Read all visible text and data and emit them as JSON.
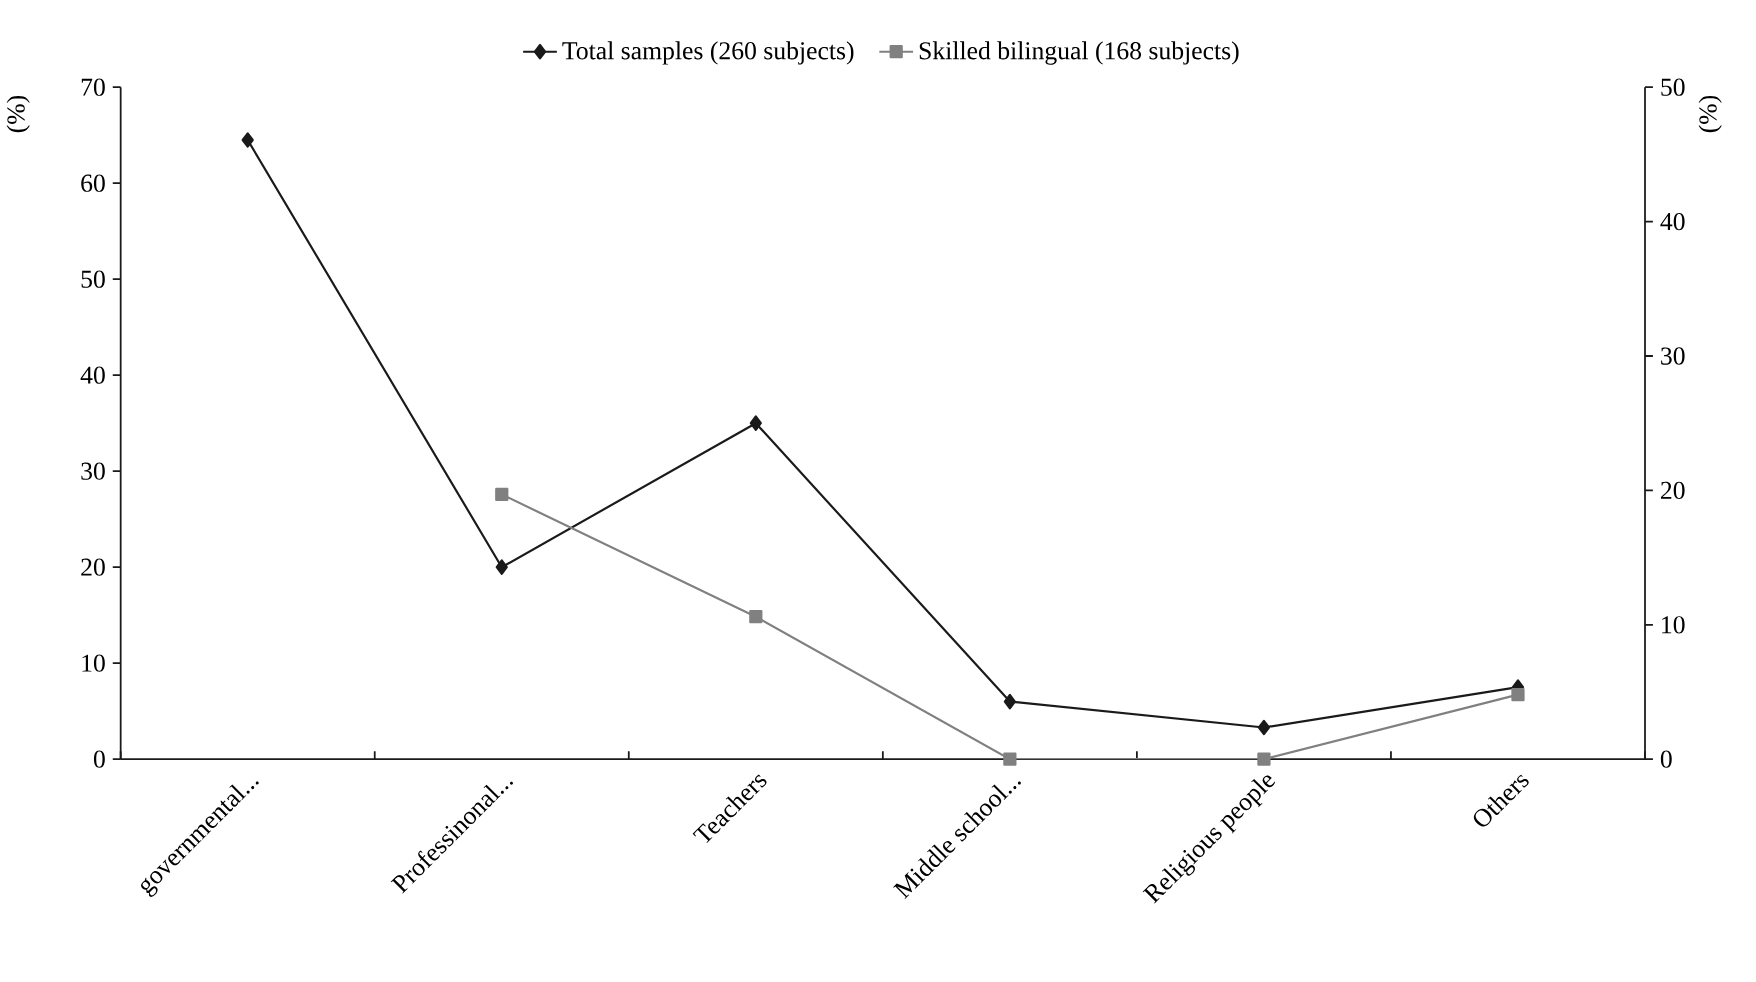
{
  "chart_data": {
    "type": "line",
    "ylabel": "(%)",
    "y2label": "(%)",
    "categories": [
      "governmental...",
      "Professinonal...",
      "Teachers",
      "Middle school...",
      "Religious people",
      "Others"
    ],
    "series": [
      {
        "name": "Total samples (260 subjects)",
        "color": "#1a1a1a",
        "marker": "diamond",
        "values": [
          64.5,
          20,
          35,
          6,
          3.3,
          7.5
        ]
      },
      {
        "name": "Skilled bilingual (168 subjects)",
        "color": "#808080",
        "marker": "square",
        "axis": "y2",
        "values": [
          null,
          19.7,
          10.6,
          0,
          0,
          4.8
        ]
      }
    ],
    "ylim": [
      0,
      70
    ],
    "yticks": [
      0,
      10,
      20,
      30,
      40,
      50,
      60,
      70
    ],
    "y2lim": [
      0,
      50
    ],
    "y2ticks": [
      0,
      10,
      20,
      30,
      40,
      50
    ],
    "legend": "top",
    "grid": false
  }
}
